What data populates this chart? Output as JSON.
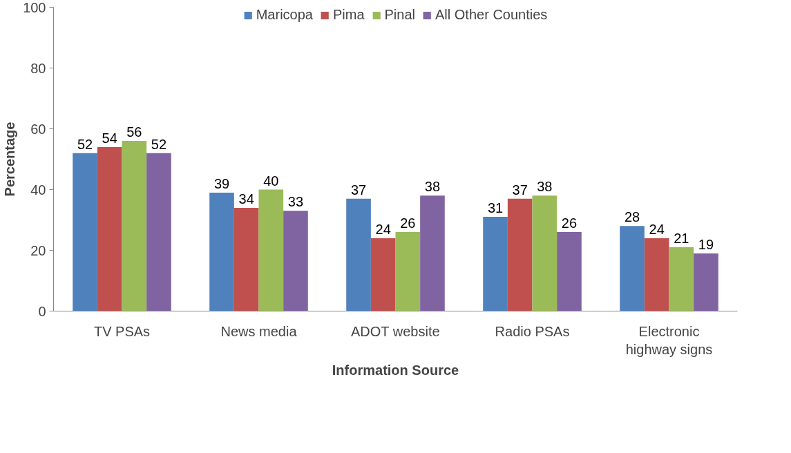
{
  "chart_data": {
    "type": "bar",
    "xlabel": "Information Source",
    "ylabel": "Percentage",
    "categories": [
      "TV PSAs",
      "News media",
      "ADOT website",
      "Radio PSAs",
      "Electronic highway signs"
    ],
    "series": [
      {
        "name": "Maricopa",
        "color": "#4f81bd",
        "values": [
          52,
          39,
          37,
          31,
          28
        ]
      },
      {
        "name": "Pima",
        "color": "#c0504d",
        "values": [
          54,
          34,
          24,
          37,
          24
        ]
      },
      {
        "name": "Pinal",
        "color": "#9bbb59",
        "values": [
          56,
          40,
          26,
          38,
          21
        ]
      },
      {
        "name": "All Other Counties",
        "color": "#8064a2",
        "values": [
          52,
          33,
          38,
          26,
          19
        ]
      }
    ],
    "ylim": [
      0,
      100
    ],
    "yticks": [
      0,
      20,
      40,
      60,
      80,
      100
    ],
    "grid": false,
    "legend": "top",
    "data_labels": true
  }
}
